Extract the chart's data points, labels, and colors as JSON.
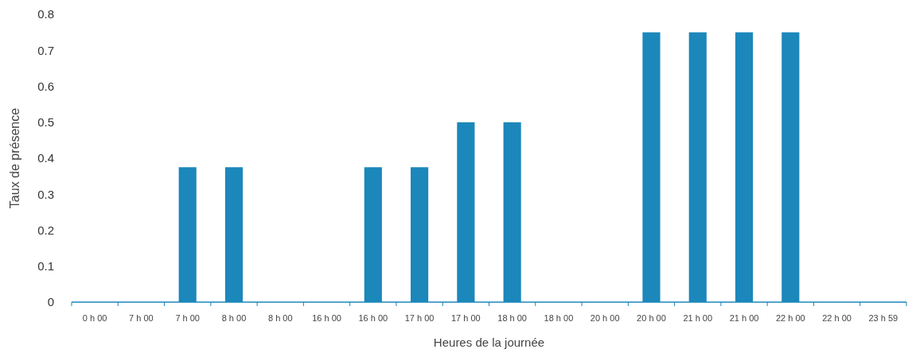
{
  "chart_data": {
    "type": "bar",
    "xlabel": "Heures de la journée",
    "ylabel": "Taux de présence",
    "categories": [
      "0 h 00",
      "7 h 00",
      "7 h 00",
      "8 h 00",
      "8 h 00",
      "16 h 00",
      "16 h 00",
      "17 h 00",
      "17 h 00",
      "18 h 00",
      "18 h 00",
      "20 h 00",
      "20 h 00",
      "21 h 00",
      "21 h 00",
      "22 h 00",
      "22 h 00",
      "23 h 59"
    ],
    "values": [
      0,
      0,
      0.375,
      0.375,
      0,
      0,
      0.375,
      0.375,
      0.5,
      0.5,
      0,
      0,
      0.75,
      0.75,
      0.75,
      0.75,
      0,
      0
    ],
    "color": "#1b87bb",
    "ylim": [
      0,
      0.8
    ],
    "yticks": [
      0,
      0.1,
      0.2,
      0.3,
      0.4,
      0.5,
      0.6,
      0.7,
      0.8
    ],
    "grid": false
  }
}
